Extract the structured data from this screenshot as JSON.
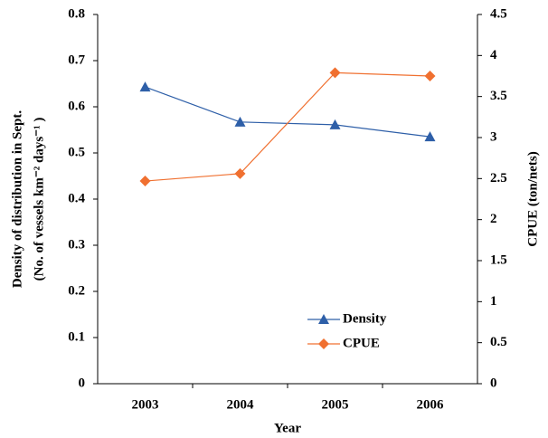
{
  "chart_data": {
    "type": "line",
    "categories": [
      "2003",
      "2004",
      "2005",
      "2006"
    ],
    "xlabel": "Year",
    "ylabel": [
      "Density of distribution in Sept.",
      "(No. of vessels km⁻² days⁻¹ )"
    ],
    "y2label": "CPUE (ton/nets)",
    "ylim": [
      0,
      0.8
    ],
    "yticks": [
      0,
      0.1,
      0.2,
      0.3,
      0.4,
      0.5,
      0.6,
      0.7,
      0.8
    ],
    "y2lim": [
      0,
      4.5
    ],
    "y2ticks": [
      0,
      0.5,
      1,
      1.5,
      2,
      2.5,
      3,
      3.5,
      4,
      4.5
    ],
    "legend": "lower-center",
    "series": [
      {
        "name": "Density",
        "color": "#2e5fa8",
        "marker": "triangle",
        "values": [
          0.643,
          0.567,
          0.561,
          0.535
        ]
      },
      {
        "name": "CPUE",
        "color": "#f07030",
        "marker": "diamond",
        "axis": "y2",
        "values": [
          2.47,
          2.56,
          3.79,
          3.75
        ]
      }
    ]
  }
}
